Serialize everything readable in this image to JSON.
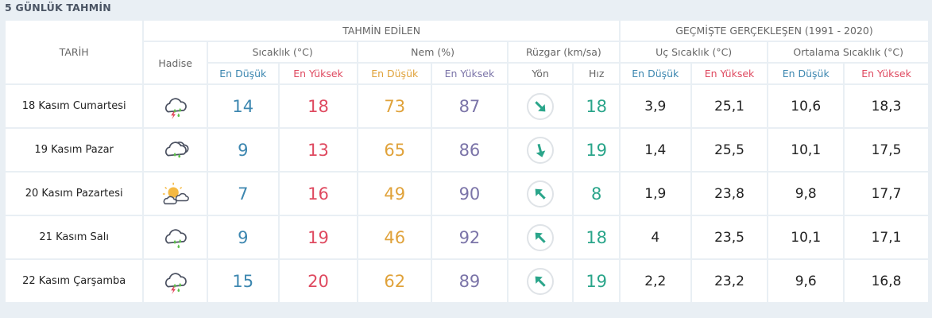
{
  "title": "5 GÜNLÜK TAHMİN",
  "headers": {
    "date": "TARİH",
    "forecast": "TAHMİN EDİLEN",
    "historical": "GEÇMİŞTE GERÇEKLEŞEN (1991 - 2020)",
    "event": "Hadise",
    "temp": "Sıcaklık (°C)",
    "humidity": "Nem (%)",
    "wind": "Rüzgar (km/sa)",
    "extreme_temp": "Uç Sıcaklık (°C)",
    "avg_temp": "Ortalama Sıcaklık (°C)",
    "min": "En Düşük",
    "max": "En Yüksek",
    "direction": "Yön",
    "speed": "Hız"
  },
  "colors": {
    "min": "#3d87b0",
    "max": "#df4a60",
    "humidity_min": "#e0a23a",
    "humidity_max": "#7b74a8",
    "wind": "#2aa58a"
  },
  "rows": [
    {
      "date": "18 Kasım Cumartesi",
      "icon": "thunderstorm-rain-icon",
      "temp_min": "14",
      "temp_max": "18",
      "hum_min": "73",
      "hum_max": "87",
      "wind_dir_deg": 135,
      "wind_speed": "18",
      "ext_min": "3,9",
      "ext_max": "25,1",
      "avg_min": "10,6",
      "avg_max": "18,3"
    },
    {
      "date": "19 Kasım Pazar",
      "icon": "cloudy-rain-icon",
      "temp_min": "9",
      "temp_max": "13",
      "hum_min": "65",
      "hum_max": "86",
      "wind_dir_deg": 165,
      "wind_speed": "19",
      "ext_min": "1,4",
      "ext_max": "25,5",
      "avg_min": "10,1",
      "avg_max": "17,5"
    },
    {
      "date": "20 Kasım Pazartesi",
      "icon": "partly-cloudy-icon",
      "temp_min": "7",
      "temp_max": "16",
      "hum_min": "49",
      "hum_max": "90",
      "wind_dir_deg": 315,
      "wind_speed": "8",
      "ext_min": "1,9",
      "ext_max": "23,8",
      "avg_min": "9,8",
      "avg_max": "17,7"
    },
    {
      "date": "21 Kasım Salı",
      "icon": "rain-icon",
      "temp_min": "9",
      "temp_max": "19",
      "hum_min": "46",
      "hum_max": "92",
      "wind_dir_deg": 315,
      "wind_speed": "18",
      "ext_min": "4",
      "ext_max": "23,5",
      "avg_min": "10,1",
      "avg_max": "17,1"
    },
    {
      "date": "22 Kasım Çarşamba",
      "icon": "thunderstorm-rain-icon",
      "temp_min": "15",
      "temp_max": "20",
      "hum_min": "62",
      "hum_max": "89",
      "wind_dir_deg": 315,
      "wind_speed": "19",
      "ext_min": "2,2",
      "ext_max": "23,2",
      "avg_min": "9,6",
      "avg_max": "16,8"
    }
  ]
}
